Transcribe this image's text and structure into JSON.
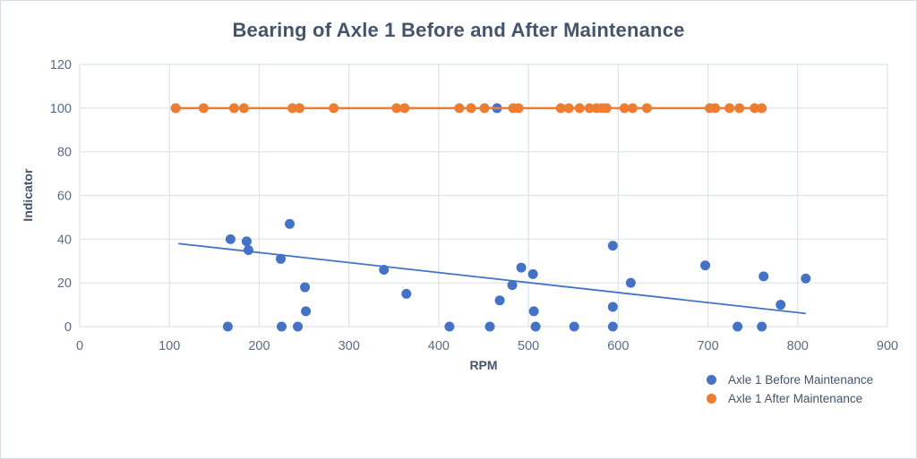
{
  "chart_data": {
    "type": "scatter",
    "title": "Bearing of Axle 1 Before and After Maintenance",
    "xlabel": "RPM",
    "ylabel": "Indicator",
    "xlim": [
      0,
      900
    ],
    "ylim": [
      0,
      120
    ],
    "x_ticks": [
      0,
      100,
      200,
      300,
      400,
      500,
      600,
      700,
      800,
      900
    ],
    "y_ticks": [
      0,
      20,
      40,
      60,
      80,
      100,
      120
    ],
    "grid": true,
    "legend_position": "bottom-right",
    "series": [
      {
        "name": "Axle 1 Before Maintenance",
        "color": "#4472C4",
        "marker": "circle",
        "line": false,
        "points": [
          [
            107,
            100
          ],
          [
            165,
            0
          ],
          [
            168,
            40
          ],
          [
            186,
            39
          ],
          [
            188,
            35
          ],
          [
            224,
            31
          ],
          [
            225,
            0
          ],
          [
            234,
            47
          ],
          [
            243,
            0
          ],
          [
            251,
            18
          ],
          [
            252,
            7
          ],
          [
            339,
            26
          ],
          [
            364,
            15
          ],
          [
            412,
            0
          ],
          [
            457,
            0
          ],
          [
            465,
            100
          ],
          [
            468,
            12
          ],
          [
            482,
            19
          ],
          [
            492,
            27
          ],
          [
            505,
            24
          ],
          [
            506,
            7
          ],
          [
            508,
            0
          ],
          [
            551,
            0
          ],
          [
            594,
            37
          ],
          [
            594,
            9
          ],
          [
            594,
            0
          ],
          [
            614,
            20
          ],
          [
            697,
            28
          ],
          [
            733,
            0
          ],
          [
            760,
            0
          ],
          [
            762,
            23
          ],
          [
            781,
            10
          ],
          [
            809,
            22
          ]
        ]
      },
      {
        "name": "Axle 1 After Maintenance",
        "color": "#ED7D31",
        "marker": "circle",
        "line": true,
        "points": [
          [
            107,
            100
          ],
          [
            138,
            100
          ],
          [
            172,
            100
          ],
          [
            183,
            100
          ],
          [
            237,
            100
          ],
          [
            245,
            100
          ],
          [
            283,
            100
          ],
          [
            353,
            100
          ],
          [
            362,
            100
          ],
          [
            423,
            100
          ],
          [
            436,
            100
          ],
          [
            451,
            100
          ],
          [
            483,
            100
          ],
          [
            489,
            100
          ],
          [
            536,
            100
          ],
          [
            545,
            100
          ],
          [
            557,
            100
          ],
          [
            568,
            100
          ],
          [
            576,
            100
          ],
          [
            582,
            100
          ],
          [
            587,
            100
          ],
          [
            607,
            100
          ],
          [
            616,
            100
          ],
          [
            632,
            100
          ],
          [
            702,
            100
          ],
          [
            708,
            100
          ],
          [
            724,
            100
          ],
          [
            735,
            100
          ],
          [
            752,
            100
          ],
          [
            760,
            100
          ]
        ]
      }
    ],
    "trendline": {
      "for_series": "Axle 1 Before Maintenance",
      "color": "#4472C4",
      "start": [
        110,
        38
      ],
      "end": [
        809,
        6
      ]
    }
  },
  "colors": {
    "grid": "#dce3ec",
    "tick_label": "#5a6b85",
    "title_text": "#44546A"
  }
}
